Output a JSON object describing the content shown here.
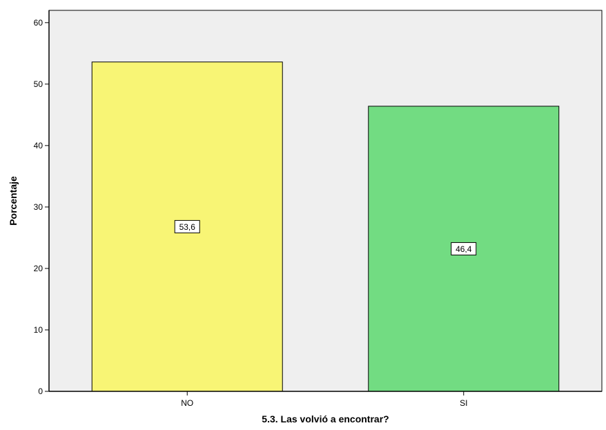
{
  "chart_data": {
    "type": "bar",
    "categories": [
      "NO",
      "SI"
    ],
    "values": [
      53.6,
      46.4
    ],
    "data_labels": [
      "53,6",
      "46,4"
    ],
    "bar_colors": [
      "#f8f575",
      "#72dc82"
    ],
    "title": "",
    "xlabel": "5.3. Las volvió a encontrar?",
    "ylabel": "Porcentaje",
    "ylim": [
      0,
      62
    ],
    "yticks": [
      0,
      10,
      20,
      30,
      40,
      50,
      60
    ],
    "ytick_labels": [
      "0",
      "10",
      "20",
      "30",
      "40",
      "50",
      "60"
    ],
    "grid": false,
    "legend": "none",
    "plot_background": "#efefef"
  }
}
